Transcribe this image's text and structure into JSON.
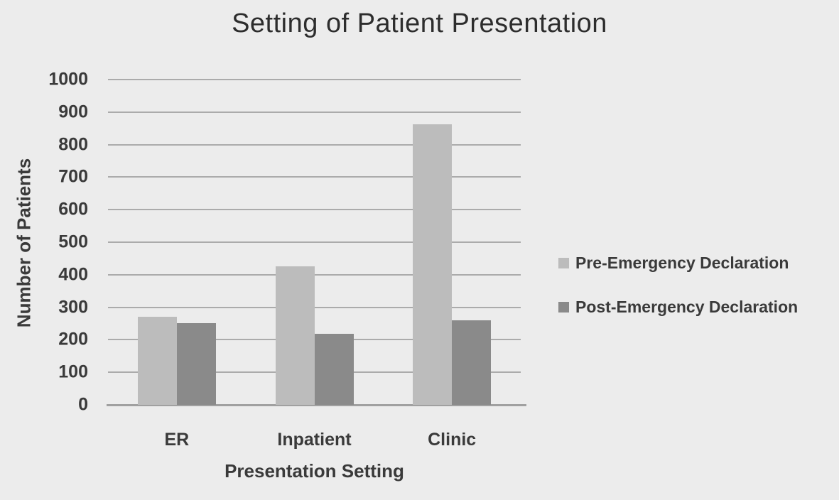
{
  "colors": {
    "background": "#ececec",
    "gridline": "#ababab",
    "axis_line": "#a0a0a0",
    "text": "#3a3a3a",
    "title_text": "#2d2d2d"
  },
  "chart_data": {
    "type": "bar",
    "title": "Setting of Patient Presentation",
    "xlabel": "Presentation Setting",
    "ylabel": "Number of Patients",
    "categories": [
      "ER",
      "Inpatient",
      "Clinic"
    ],
    "series": [
      {
        "name": "Pre-Emergency Declaration",
        "color": "#bcbcbc",
        "values": [
          270,
          426,
          862
        ]
      },
      {
        "name": "Post-Emergency Declaration",
        "color": "#8a8a8a",
        "values": [
          252,
          219,
          259
        ]
      }
    ],
    "ylim": [
      0,
      1000
    ],
    "yticks": [
      0,
      100,
      200,
      300,
      400,
      500,
      600,
      700,
      800,
      900,
      1000
    ],
    "grid": "horizontal",
    "legend_position": "right"
  }
}
